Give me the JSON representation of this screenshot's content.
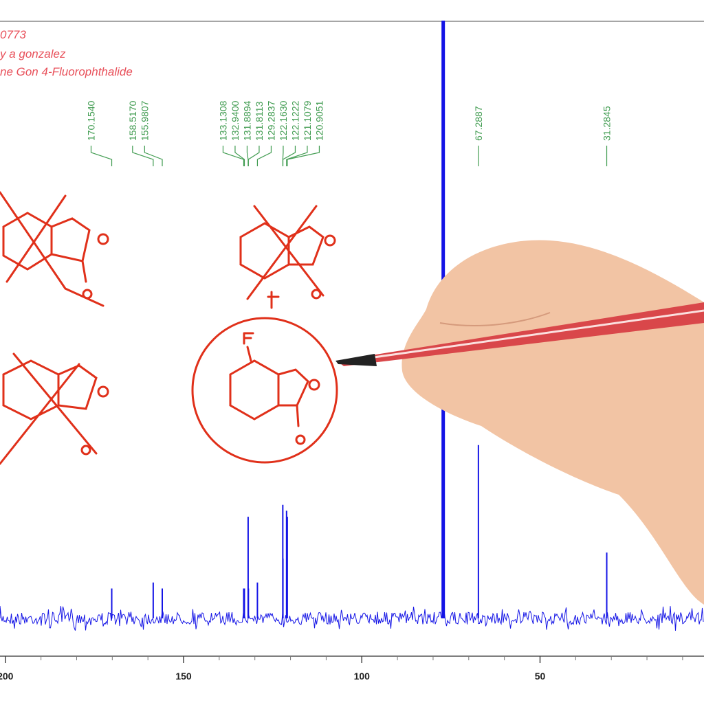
{
  "chart_data": {
    "type": "nmr",
    "annotations": [
      "0773",
      "y a gonzalez",
      "ne Gon 4-Fluorophthalide"
    ],
    "peaks": {
      "color": "#1414e6",
      "label_color": "#3f9b4f",
      "x": [
        170.154,
        158.517,
        155.9807,
        133.1308,
        132.94,
        131.8894,
        131.8113,
        129.2837,
        122.163,
        122.1222,
        121.1079,
        120.9051,
        77.16,
        67.2887,
        31.2845
      ],
      "x_labels": [
        "170.1540",
        "158.5170",
        "155.9807",
        "133.1308",
        "132.9400",
        "131.8894",
        "131.8113",
        "129.2837",
        "122.1630",
        "122.1222",
        "121.1079",
        "120.9051",
        null,
        "67.2887",
        "31.2845"
      ],
      "values": [
        5,
        6,
        5,
        5,
        5,
        17,
        5,
        6,
        19,
        10,
        18,
        17,
        100,
        29,
        11
      ]
    },
    "xlim": [
      201.5,
      4
    ],
    "xticks": [
      200,
      150,
      100,
      50
    ],
    "minor_xticks": [
      190,
      180,
      170,
      160,
      140,
      130,
      120,
      110,
      90,
      80,
      70,
      60,
      40,
      30,
      20,
      10
    ]
  }
}
